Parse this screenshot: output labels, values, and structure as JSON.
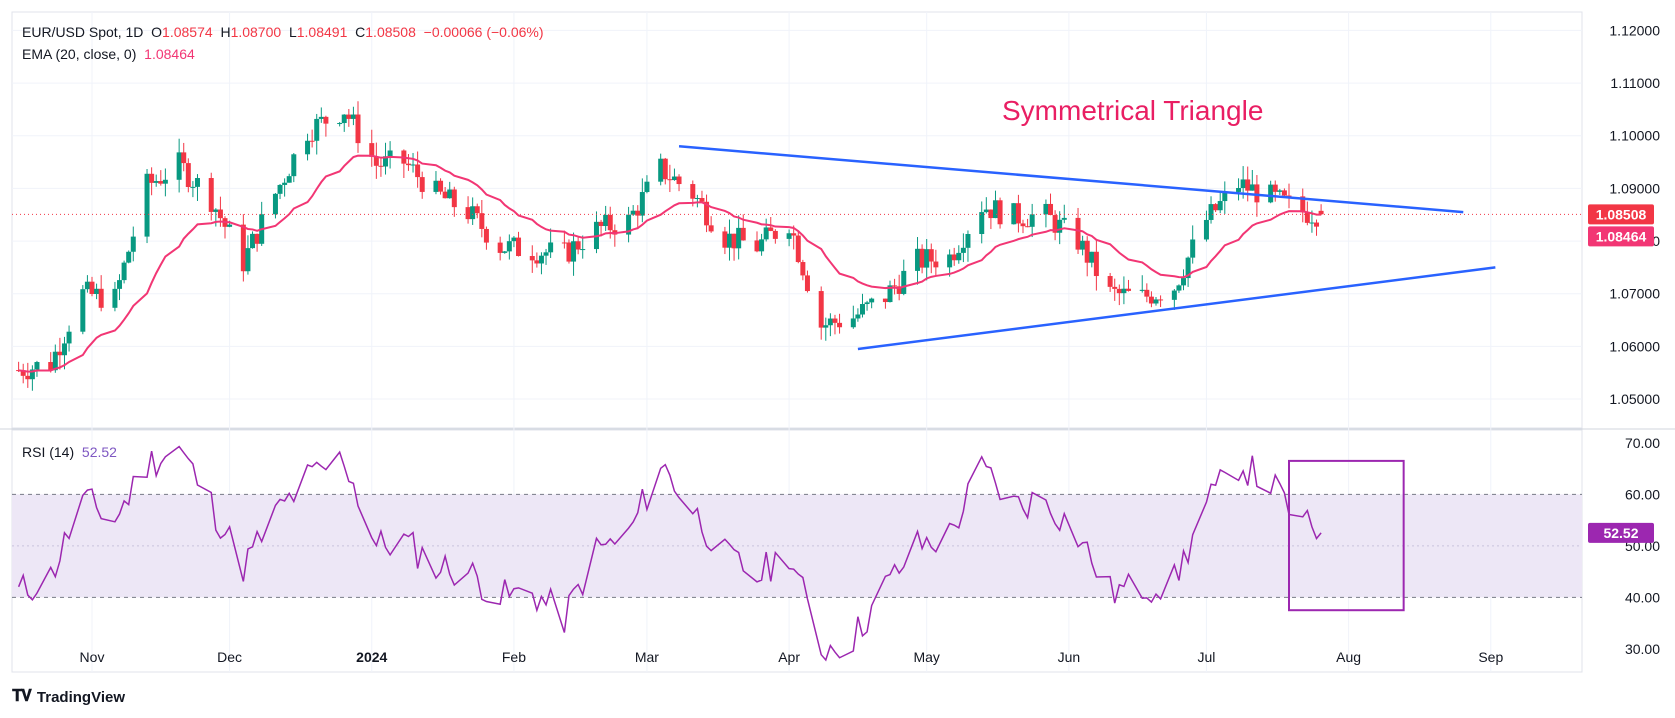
{
  "legend": {
    "symbol": "EUR/USD Spot, 1D",
    "o_label": "O",
    "o_value": "1.08574",
    "h_label": "H",
    "h_value": "1.08700",
    "l_label": "L",
    "l_value": "1.08491",
    "c_label": "C",
    "c_value": "1.08508",
    "change": "−0.00066 (−0.06%)",
    "ema_label": "EMA (20, close, 0)",
    "ema_value": "1.08464",
    "rsi_label": "RSI (14)",
    "rsi_value": "52.52"
  },
  "annotation": {
    "text": "Symmetrical Triangle",
    "color": "#e91e63"
  },
  "footer": {
    "brand": "TradingView",
    "logo_icon": "tradingview-logo-icon"
  },
  "colors": {
    "up": "#089981",
    "down": "#f23645",
    "ema": "#f23674",
    "trend": "#2962ff",
    "rsi": "#9c27b0",
    "rsi_fill": "#ede7f6",
    "box": "#9c27b0"
  },
  "chart_data": [
    {
      "type": "candlestick",
      "title": "EUR/USD Spot, 1D",
      "x_ticks": [
        "Nov",
        "Dec",
        "2024",
        "Feb",
        "Mar",
        "Apr",
        "May",
        "Jun",
        "Jul",
        "Aug",
        "Sep"
      ],
      "y_ticks": [
        "1.12000",
        "1.11000",
        "1.10000",
        "1.09000",
        "1.08000",
        "1.07000",
        "1.06000",
        "1.05000"
      ],
      "ylim": [
        1.0445,
        1.1235
      ],
      "price_labels": {
        "last_close": "1.08508",
        "ema": "1.08464"
      },
      "close_series_approx": [
        [
          "2023-10-16",
          1.0555
        ],
        [
          "2023-10-23",
          1.0568
        ],
        [
          "2023-10-30",
          1.07
        ],
        [
          "2023-11-06",
          1.069
        ],
        [
          "2023-11-13",
          1.0905
        ],
        [
          "2023-11-20",
          1.0945
        ],
        [
          "2023-11-27",
          1.088
        ],
        [
          "2023-12-04",
          1.076
        ],
        [
          "2023-12-11",
          1.089
        ],
        [
          "2023-12-18",
          1.101
        ],
        [
          "2023-12-26",
          1.105
        ],
        [
          "2024-01-02",
          1.0945
        ],
        [
          "2024-01-08",
          1.095
        ],
        [
          "2024-01-15",
          1.089
        ],
        [
          "2024-01-22",
          1.0855
        ],
        [
          "2024-01-29",
          1.079
        ],
        [
          "2024-02-05",
          1.0782
        ],
        [
          "2024-02-12",
          1.0775
        ],
        [
          "2024-02-19",
          1.0822
        ],
        [
          "2024-02-26",
          1.0838
        ],
        [
          "2024-03-04",
          1.0937
        ],
        [
          "2024-03-11",
          1.089
        ],
        [
          "2024-03-18",
          1.0808
        ],
        [
          "2024-03-25",
          1.079
        ],
        [
          "2024-04-01",
          1.0837
        ],
        [
          "2024-04-08",
          1.064
        ],
        [
          "2024-04-15",
          1.0655
        ],
        [
          "2024-04-22",
          1.0695
        ],
        [
          "2024-04-29",
          1.0762
        ],
        [
          "2024-05-06",
          1.077
        ],
        [
          "2024-05-13",
          1.0868
        ],
        [
          "2024-05-20",
          1.0847
        ],
        [
          "2024-05-27",
          1.0848
        ],
        [
          "2024-06-03",
          1.08
        ],
        [
          "2024-06-10",
          1.07
        ],
        [
          "2024-06-17",
          1.0693
        ],
        [
          "2024-06-24",
          1.0714
        ],
        [
          "2024-07-01",
          1.084
        ],
        [
          "2024-07-08",
          1.0908
        ],
        [
          "2024-07-15",
          1.0883
        ],
        [
          "2024-07-22",
          1.0856
        ],
        [
          "2024-07-26",
          1.0851
        ]
      ],
      "ema_period": 20,
      "trendlines": [
        {
          "name": "upper",
          "from": [
            "2024-03-08",
            1.098
          ],
          "to": [
            "2024-08-26",
            1.0855
          ]
        },
        {
          "name": "lower",
          "from": [
            "2024-04-16",
            1.0595
          ],
          "to": [
            "2024-09-02",
            1.075
          ]
        }
      ],
      "annotation": "Symmetrical Triangle"
    },
    {
      "type": "line",
      "title": "RSI (14)",
      "y_ticks": [
        "70.00",
        "60.00",
        "50.00",
        "40.00",
        "30.00"
      ],
      "ylim": [
        25.5,
        72.5
      ],
      "band": [
        40,
        60
      ],
      "last_value": "52.52",
      "values_approx": [
        [
          "2023-10-16",
          41
        ],
        [
          "2023-10-23",
          44
        ],
        [
          "2023-10-30",
          59
        ],
        [
          "2023-11-06",
          55
        ],
        [
          "2023-11-13",
          66
        ],
        [
          "2023-11-20",
          69
        ],
        [
          "2023-11-27",
          58
        ],
        [
          "2023-12-04",
          46
        ],
        [
          "2023-12-11",
          56
        ],
        [
          "2023-12-18",
          63
        ],
        [
          "2023-12-26",
          67
        ],
        [
          "2024-01-02",
          50
        ],
        [
          "2024-01-08",
          51
        ],
        [
          "2024-01-15",
          46
        ],
        [
          "2024-01-22",
          45
        ],
        [
          "2024-01-29",
          40
        ],
        [
          "2024-02-05",
          41
        ],
        [
          "2024-02-12",
          36
        ],
        [
          "2024-02-19",
          49
        ],
        [
          "2024-02-26",
          52
        ],
        [
          "2024-03-04",
          66
        ],
        [
          "2024-03-11",
          57
        ],
        [
          "2024-03-18",
          48
        ],
        [
          "2024-03-25",
          44
        ],
        [
          "2024-04-01",
          49
        ],
        [
          "2024-04-08",
          30
        ],
        [
          "2024-04-15",
          32
        ],
        [
          "2024-04-22",
          42
        ],
        [
          "2024-04-29",
          50
        ],
        [
          "2024-05-06",
          52
        ],
        [
          "2024-05-13",
          65
        ],
        [
          "2024-05-20",
          58
        ],
        [
          "2024-05-27",
          59
        ],
        [
          "2024-06-03",
          52
        ],
        [
          "2024-06-10",
          41
        ],
        [
          "2024-06-17",
          42
        ],
        [
          "2024-06-24",
          43
        ],
        [
          "2024-07-01",
          58
        ],
        [
          "2024-07-08",
          66
        ],
        [
          "2024-07-15",
          62
        ],
        [
          "2024-07-22",
          54
        ],
        [
          "2024-07-26",
          52.5
        ]
      ],
      "highlight_box": {
        "from": [
          "2024-07-19",
          37.5
        ],
        "to": [
          "2024-08-13",
          66.5
        ]
      }
    }
  ]
}
